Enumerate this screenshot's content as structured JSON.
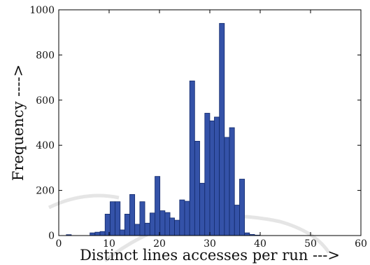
{
  "chart_data": {
    "type": "bar",
    "title": "",
    "xlabel": "Distinct lines accesses per run --->",
    "ylabel": "Frequency ---->",
    "xlim": [
      0,
      60
    ],
    "ylim": [
      0,
      1000
    ],
    "xticks": [
      "0",
      "10",
      "20",
      "30",
      "40",
      "50",
      "60"
    ],
    "yticks": [
      "0",
      "200",
      "400",
      "600",
      "800",
      "1000"
    ],
    "grid": false,
    "legend": "none",
    "bin_width": 0.99,
    "bins": [
      {
        "x": 1.5,
        "value": 4
      },
      {
        "x": 6.2,
        "value": 12
      },
      {
        "x": 7.2,
        "value": 15
      },
      {
        "x": 8.2,
        "value": 18
      },
      {
        "x": 9.2,
        "value": 95
      },
      {
        "x": 10.2,
        "value": 150
      },
      {
        "x": 11.2,
        "value": 150
      },
      {
        "x": 12.1,
        "value": 25
      },
      {
        "x": 13.1,
        "value": 95
      },
      {
        "x": 14.1,
        "value": 182
      },
      {
        "x": 15.1,
        "value": 50
      },
      {
        "x": 16.1,
        "value": 150
      },
      {
        "x": 17.1,
        "value": 55
      },
      {
        "x": 18.1,
        "value": 100
      },
      {
        "x": 19.1,
        "value": 262
      },
      {
        "x": 20.1,
        "value": 110
      },
      {
        "x": 21.1,
        "value": 102
      },
      {
        "x": 22.0,
        "value": 78
      },
      {
        "x": 23.0,
        "value": 68
      },
      {
        "x": 24.0,
        "value": 158
      },
      {
        "x": 25.0,
        "value": 152
      },
      {
        "x": 26.0,
        "value": 685
      },
      {
        "x": 27.0,
        "value": 418
      },
      {
        "x": 28.0,
        "value": 232
      },
      {
        "x": 29.0,
        "value": 542
      },
      {
        "x": 30.0,
        "value": 508
      },
      {
        "x": 30.9,
        "value": 525
      },
      {
        "x": 31.9,
        "value": 940
      },
      {
        "x": 32.9,
        "value": 435
      },
      {
        "x": 33.9,
        "value": 478
      },
      {
        "x": 34.9,
        "value": 135
      },
      {
        "x": 35.9,
        "value": 250
      },
      {
        "x": 36.9,
        "value": 12
      },
      {
        "x": 37.9,
        "value": 5
      },
      {
        "x": 38.9,
        "value": 2
      }
    ],
    "bar_color": "#3452a8"
  }
}
